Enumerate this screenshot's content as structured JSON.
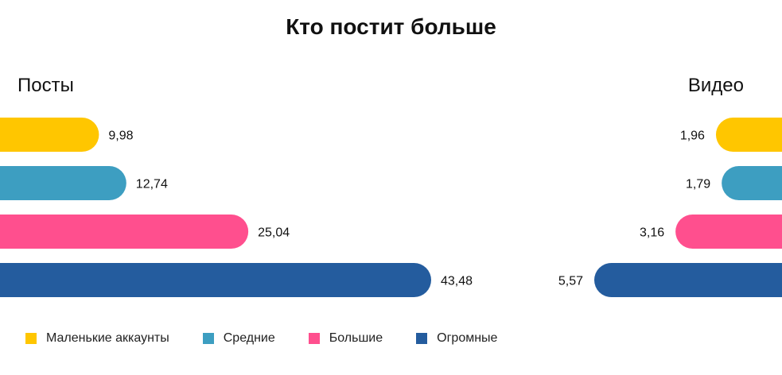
{
  "title": "Кто постит больше",
  "chart_data": [
    {
      "type": "bar",
      "orientation": "horizontal",
      "title": "Посты",
      "categories": [
        "Маленькие аккаунты",
        "Средние",
        "Большие",
        "Огромные"
      ],
      "values": [
        9.98,
        12.74,
        25.04,
        43.48
      ],
      "value_labels": [
        "9,98",
        "12,74",
        "25,04",
        "43,48"
      ],
      "anchor": "left"
    },
    {
      "type": "bar",
      "orientation": "horizontal",
      "title": "Видео",
      "categories": [
        "Маленькие аккаунты",
        "Средние",
        "Большие",
        "Огромные"
      ],
      "values": [
        1.96,
        1.79,
        3.16,
        5.57
      ],
      "value_labels": [
        "1,96",
        "1,79",
        "3,16",
        "5,57"
      ],
      "anchor": "right"
    }
  ],
  "legend": [
    {
      "label": "Маленькие аккаунты",
      "color": "#FFC600"
    },
    {
      "label": "Средние",
      "color": "#3D9EC1"
    },
    {
      "label": "Большие",
      "color": "#FF4F8E"
    },
    {
      "label": "Огромные",
      "color": "#245C9E"
    }
  ]
}
